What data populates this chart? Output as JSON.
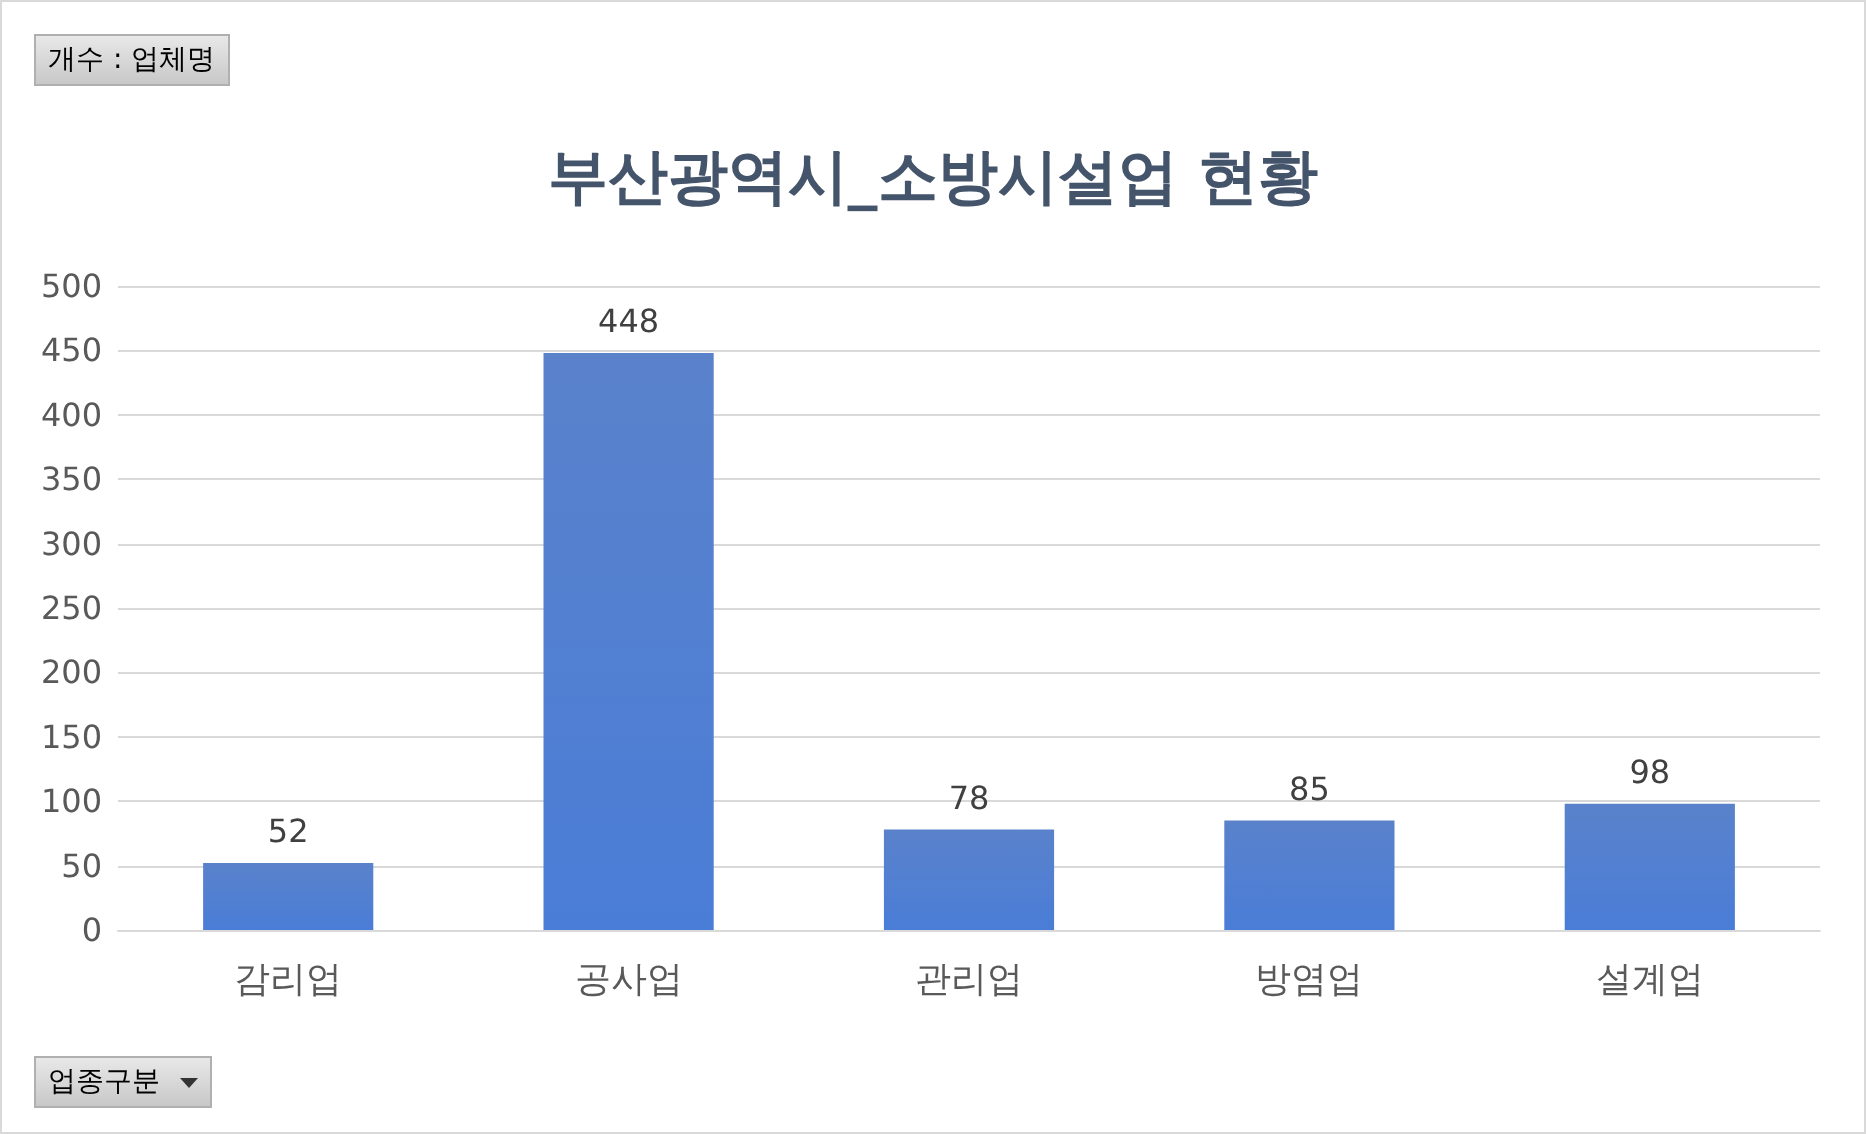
{
  "chart_data": {
    "type": "bar",
    "title": "부산광역시_소방시설업 현황",
    "categories": [
      "감리업",
      "공사업",
      "관리업",
      "방염업",
      "설계업"
    ],
    "values": [
      52,
      448,
      78,
      85,
      98
    ],
    "color": "#4472c4",
    "ylim": [
      0,
      500
    ],
    "yticks": [
      0,
      50,
      100,
      150,
      200,
      250,
      300,
      350,
      400,
      450,
      500
    ],
    "grid": "y",
    "data_labels": true,
    "annotations": [
      "개수 : 업체명",
      "업종구분"
    ]
  }
}
